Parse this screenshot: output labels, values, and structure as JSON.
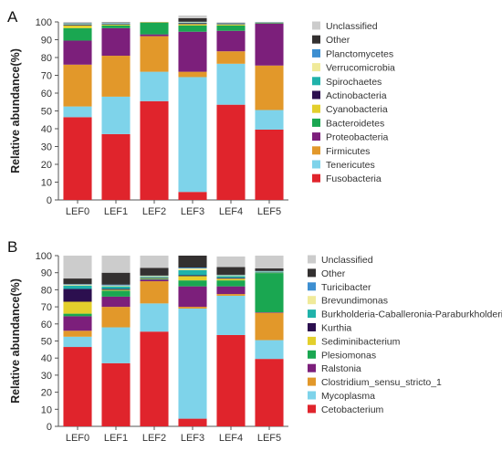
{
  "chart_data": [
    {
      "panel_label": "A",
      "type": "bar",
      "stacked": true,
      "ylabel": "Relative abundance(%)",
      "ylim": [
        0,
        100
      ],
      "yticks": [
        0,
        10,
        20,
        30,
        40,
        50,
        60,
        70,
        80,
        90,
        100
      ],
      "categories": [
        "LEF0",
        "LEF1",
        "LEF2",
        "LEF3",
        "LEF4",
        "LEF5"
      ],
      "legend_position": "right",
      "series": [
        {
          "name": "Fusobacteria",
          "color": "#e0242c",
          "values": [
            46.5,
            37,
            55.5,
            4.5,
            53.5,
            39.5
          ]
        },
        {
          "name": "Tenericutes",
          "color": "#7ed3ea",
          "values": [
            6,
            21,
            16.5,
            64.5,
            23,
            11
          ]
        },
        {
          "name": "Firmicutes",
          "color": "#e2982a",
          "values": [
            23.5,
            23,
            20,
            3,
            7,
            25
          ]
        },
        {
          "name": "Proteobacteria",
          "color": "#7c1f7b",
          "values": [
            13.5,
            15.5,
            1,
            22.5,
            11.5,
            23.5
          ]
        },
        {
          "name": "Bacteroidetes",
          "color": "#1aa751",
          "values": [
            7,
            1.5,
            6.5,
            3.5,
            3,
            0.3
          ]
        },
        {
          "name": "Cyanobacteria",
          "color": "#e3cf2c",
          "values": [
            1.5,
            0.5,
            0.3,
            0.8,
            0.5,
            0.1
          ]
        },
        {
          "name": "Actinobacteria",
          "color": "#2c0f4f",
          "values": [
            0.4,
            0.3,
            0.1,
            0.5,
            0.2,
            0.1
          ]
        },
        {
          "name": "Spirochaetes",
          "color": "#20b2aa",
          "values": [
            0.3,
            0.3,
            0.1,
            0.3,
            0.2,
            0.1
          ]
        },
        {
          "name": "Verrucomicrobia",
          "color": "#f0ea9a",
          "values": [
            0.3,
            0.2,
            0.0,
            0.3,
            0.2,
            0.1
          ]
        },
        {
          "name": "Planctomycetes",
          "color": "#3d8fd1",
          "values": [
            0.2,
            0.2,
            0.0,
            0.2,
            0.2,
            0.1
          ]
        },
        {
          "name": "Other",
          "color": "#333030",
          "values": [
            0.2,
            0.2,
            0.0,
            2.0,
            0.2,
            0.1
          ]
        },
        {
          "name": "Unclassified",
          "color": "#cccccc",
          "values": [
            0.6,
            0.3,
            0.0,
            1.5,
            0.3,
            0.0
          ]
        }
      ]
    },
    {
      "panel_label": "B",
      "type": "bar",
      "stacked": true,
      "ylabel": "Relative abundance(%)",
      "ylim": [
        0,
        100
      ],
      "yticks": [
        0,
        10,
        20,
        30,
        40,
        50,
        60,
        70,
        80,
        90,
        100
      ],
      "categories": [
        "LEF0",
        "LEF1",
        "LEF2",
        "LEF3",
        "LEF4",
        "LEF5"
      ],
      "legend_position": "right",
      "series": [
        {
          "name": "Cetobacterium",
          "color": "#e0242c",
          "values": [
            46.5,
            37,
            55.5,
            4.5,
            53.5,
            39.5
          ]
        },
        {
          "name": "Mycoplasma",
          "color": "#7ed3ea",
          "values": [
            6,
            21,
            16.5,
            64.5,
            23,
            11
          ]
        },
        {
          "name": "Clostridium_sensu_stricto_1",
          "color": "#e2982a",
          "values": [
            3.5,
            12,
            13,
            1,
            1,
            16
          ]
        },
        {
          "name": "Ralstonia",
          "color": "#7c1f7b",
          "values": [
            8.5,
            6,
            1,
            12,
            4.5,
            0.3
          ]
        },
        {
          "name": "Plesiomonas",
          "color": "#1aa751",
          "values": [
            1.5,
            3.5,
            0.5,
            3.5,
            3.5,
            23
          ]
        },
        {
          "name": "Sediminibacterium",
          "color": "#e3cf2c",
          "values": [
            7,
            0.5,
            0.3,
            2.5,
            1,
            0.2
          ]
        },
        {
          "name": "Kurthia",
          "color": "#2c0f4f",
          "values": [
            7.5,
            0.5,
            0.3,
            0.5,
            0.5,
            0.1
          ]
        },
        {
          "name": "Burkholderia-Caballeronia-Paraburkholderia",
          "color": "#20b2aa",
          "values": [
            2,
            1.5,
            0.5,
            3,
            1,
            0.5
          ]
        },
        {
          "name": "Brevundimonas",
          "color": "#f0ea9a",
          "values": [
            0.5,
            0.5,
            0.5,
            1,
            0.5,
            0.2
          ]
        },
        {
          "name": "Turicibacter",
          "color": "#3d8fd1",
          "values": [
            0.3,
            0.5,
            0.2,
            0.5,
            0.3,
            0.2
          ]
        },
        {
          "name": "Other",
          "color": "#333030",
          "values": [
            3.3,
            7,
            4.5,
            7,
            4.5,
            1.5
          ]
        },
        {
          "name": "Unclassified",
          "color": "#cccccc",
          "values": [
            13.4,
            10,
            7.2,
            0,
            6.2,
            7.5
          ]
        }
      ]
    }
  ]
}
